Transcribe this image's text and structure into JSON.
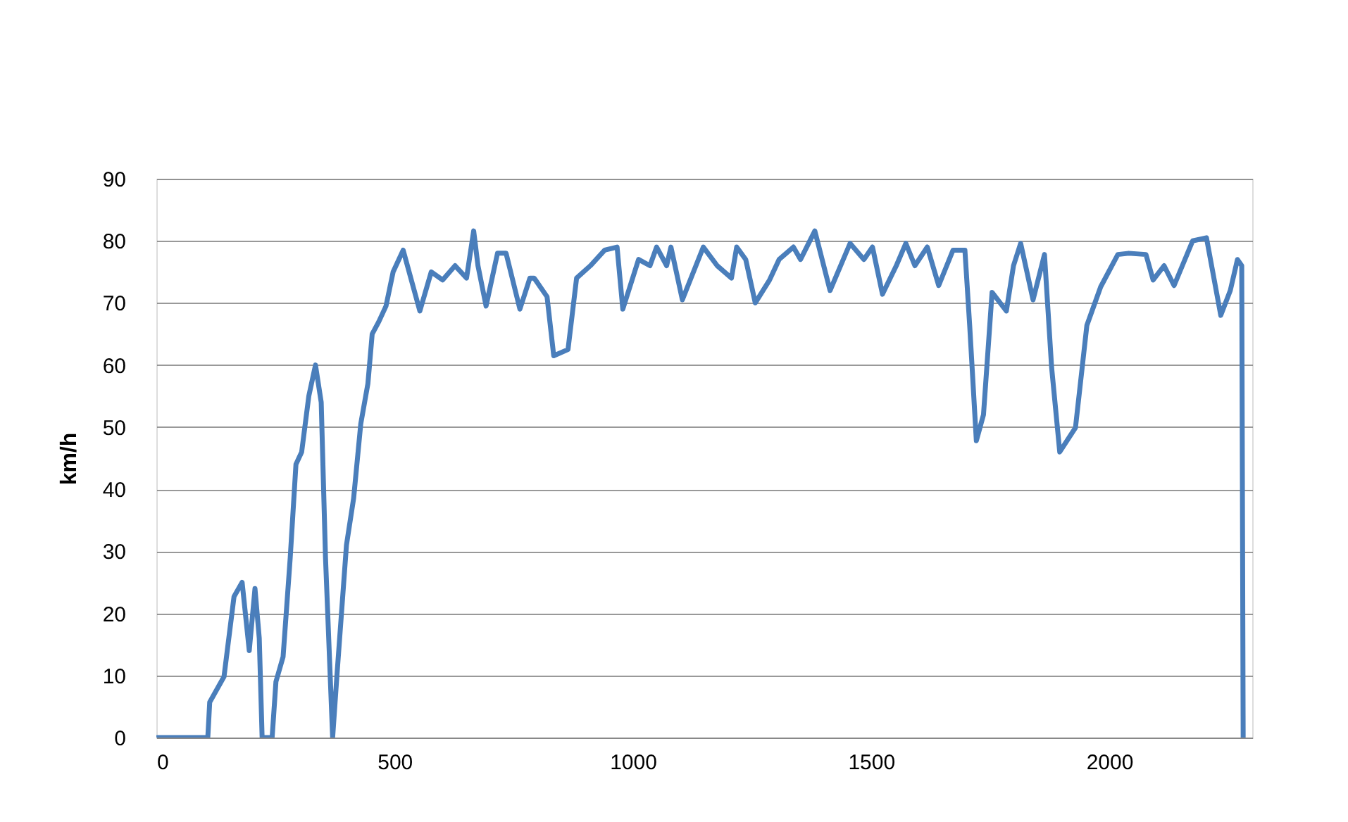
{
  "chart_data": {
    "type": "line",
    "ylabel": "km/h",
    "x": [
      0,
      108,
      112,
      142,
      163,
      180,
      195,
      207,
      216,
      222,
      243,
      251,
      266,
      281,
      293,
      305,
      320,
      334,
      346,
      355,
      370,
      379,
      399,
      414,
      429,
      444,
      453,
      467,
      482,
      497,
      518,
      553,
      577,
      601,
      627,
      651,
      666,
      675,
      692,
      716,
      734,
      763,
      784,
      793,
      820,
      834,
      864,
      882,
      911,
      941,
      967,
      979,
      1012,
      1036,
      1050,
      1071,
      1080,
      1104,
      1148,
      1177,
      1207,
      1218,
      1237,
      1257,
      1287,
      1307,
      1337,
      1352,
      1382,
      1414,
      1456,
      1485,
      1503,
      1524,
      1553,
      1573,
      1592,
      1618,
      1642,
      1672,
      1697,
      1707,
      1721,
      1736,
      1754,
      1784,
      1799,
      1814,
      1840,
      1864,
      1879,
      1896,
      1929,
      1953,
      1982,
      2018,
      2041,
      2077,
      2092,
      2115,
      2136,
      2175,
      2204,
      2234,
      2254,
      2269,
      2278,
      2281
    ],
    "series": [
      {
        "color": "#4a7ebb",
        "values": [
          0,
          0,
          5.7,
          9.8,
          22.7,
          25,
          14,
          24,
          16,
          0,
          0,
          9,
          13,
          29,
          44,
          46,
          55,
          60,
          54,
          29,
          0,
          10,
          31,
          38.5,
          50.5,
          57,
          65,
          67,
          69.5,
          75,
          78.5,
          68.7,
          75,
          73.7,
          76,
          74,
          81.6,
          76,
          69.5,
          78,
          78,
          69,
          74,
          74,
          71,
          61.5,
          62.5,
          74,
          76,
          78.5,
          79,
          69,
          77,
          76,
          79,
          76,
          79,
          70.5,
          79,
          76,
          74,
          79,
          77,
          70,
          73.7,
          77,
          79,
          77,
          81.6,
          72,
          79.6,
          77,
          79,
          71.4,
          76,
          79.6,
          76,
          79,
          72.8,
          78.5,
          78.5,
          66.4,
          47.8,
          52,
          71.7,
          68.7,
          76,
          79.6,
          70.5,
          77.8,
          59.6,
          46,
          49.9,
          66.4,
          72.6,
          77.8,
          78,
          77.8,
          73.7,
          76,
          72.8,
          80,
          80.5,
          68,
          72,
          77,
          76,
          0
        ]
      }
    ],
    "xlim": [
      0,
      2300
    ],
    "xticks": [
      0,
      500,
      1000,
      1500,
      2000
    ],
    "ylim": [
      0,
      90
    ],
    "yticks": [
      0,
      10,
      20,
      30,
      40,
      50,
      60,
      70,
      80,
      90
    ],
    "grid": "y",
    "marker": "none",
    "line_style": "solid"
  }
}
